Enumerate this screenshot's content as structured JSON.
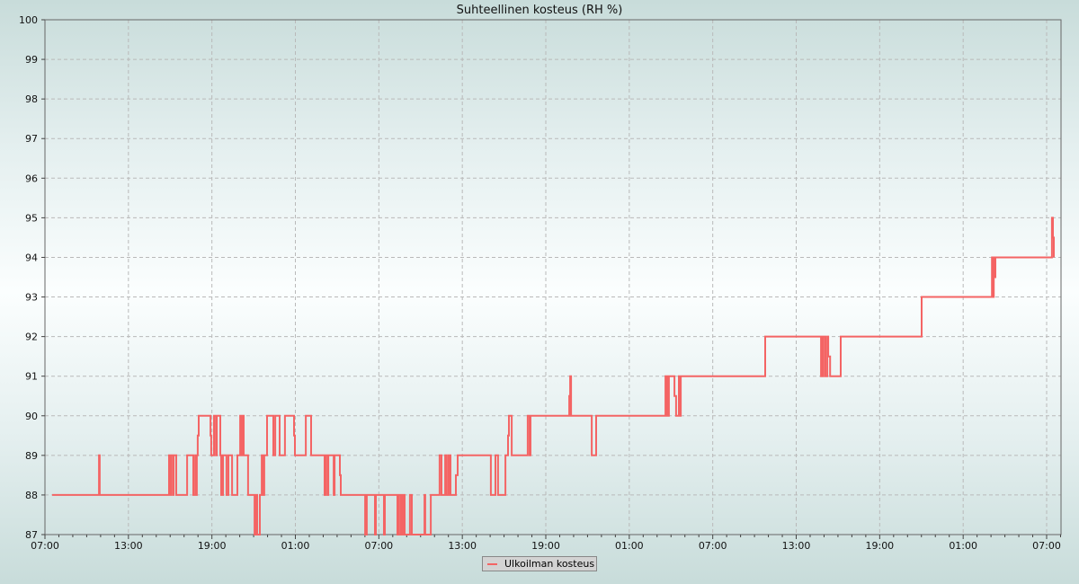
{
  "chart_data": {
    "type": "line",
    "step": true,
    "title": "Suhteellinen kosteus (RH %)",
    "xlabel": "",
    "ylabel": "",
    "ylim": [
      87,
      100
    ],
    "yticks": [
      87,
      88,
      89,
      90,
      91,
      92,
      93,
      94,
      95,
      96,
      97,
      98,
      99,
      100
    ],
    "xlim": [
      "07:00",
      "08:02"
    ],
    "xtick_labels": [
      "07:00",
      "13:00",
      "19:00",
      "01:00",
      "07:00",
      "13:00",
      "19:00",
      "01:00",
      "07:00",
      "13:00",
      "19:00",
      "01:00",
      "07:00"
    ],
    "grid": true,
    "legend_position": "bottom-center",
    "series": [
      {
        "name": "Ulkoilman kosteus",
        "color": "#f46464",
        "points": [
          [
            "07:31",
            88
          ],
          [
            "10:53",
            89
          ],
          [
            "10:56",
            88
          ],
          [
            "15:55",
            89
          ],
          [
            "15:59",
            88
          ],
          [
            "16:03",
            89
          ],
          [
            "16:11",
            88
          ],
          [
            "16:15",
            89
          ],
          [
            "16:26",
            88
          ],
          [
            "17:13",
            89
          ],
          [
            "17:40",
            88
          ],
          [
            "17:48",
            89
          ],
          [
            "17:51",
            88
          ],
          [
            "17:55",
            89
          ],
          [
            "17:59",
            89.5
          ],
          [
            "18:03",
            90
          ],
          [
            "18:54",
            89.5
          ],
          [
            "18:57",
            89
          ],
          [
            "19:09",
            90
          ],
          [
            "19:17",
            89
          ],
          [
            "19:21",
            90
          ],
          [
            "19:36",
            89
          ],
          [
            "19:40",
            88
          ],
          [
            "19:48",
            89
          ],
          [
            "20:03",
            88
          ],
          [
            "20:11",
            89
          ],
          [
            "20:27",
            88
          ],
          [
            "20:50",
            89
          ],
          [
            "21:02",
            90
          ],
          [
            "21:09",
            89
          ],
          [
            "21:13",
            90
          ],
          [
            "21:17",
            89
          ],
          [
            "21:36",
            88
          ],
          [
            "22:04",
            87
          ],
          [
            "22:11",
            88
          ],
          [
            "22:15",
            87
          ],
          [
            "22:27",
            88
          ],
          [
            "22:35",
            89
          ],
          [
            "22:42",
            88
          ],
          [
            "22:46",
            89
          ],
          [
            "22:58",
            90
          ],
          [
            "23:25",
            89
          ],
          [
            "23:33",
            90
          ],
          [
            "23:52",
            89
          ],
          [
            "00:15",
            90
          ],
          [
            "00:54",
            89.5
          ],
          [
            "00:58",
            89
          ],
          [
            "01:45",
            90
          ],
          [
            "02:08",
            89
          ],
          [
            "03:06",
            88
          ],
          [
            "03:10",
            89
          ],
          [
            "03:18",
            88
          ],
          [
            "03:22",
            89
          ],
          [
            "03:45",
            88
          ],
          [
            "03:49",
            89
          ],
          [
            "04:12",
            88.5
          ],
          [
            "04:16",
            88
          ],
          [
            "06:01",
            87
          ],
          [
            "06:08",
            88
          ],
          [
            "06:43",
            87
          ],
          [
            "06:47",
            88
          ],
          [
            "07:22",
            87
          ],
          [
            "07:26",
            88
          ],
          [
            "08:20",
            87
          ],
          [
            "08:24",
            88
          ],
          [
            "08:32",
            87
          ],
          [
            "08:36",
            88
          ],
          [
            "08:43",
            87
          ],
          [
            "08:47",
            88
          ],
          [
            "08:51",
            87
          ],
          [
            "09:14",
            88
          ],
          [
            "09:22",
            87
          ],
          [
            "10:17",
            88
          ],
          [
            "10:20",
            87
          ],
          [
            "10:44",
            88
          ],
          [
            "11:22",
            89
          ],
          [
            "11:30",
            88
          ],
          [
            "11:46",
            89
          ],
          [
            "11:53",
            88
          ],
          [
            "12:01",
            89
          ],
          [
            "12:09",
            88
          ],
          [
            "12:32",
            88.5
          ],
          [
            "12:40",
            89
          ],
          [
            "15:03",
            88
          ],
          [
            "15:23",
            89
          ],
          [
            "15:34",
            88
          ],
          [
            "16:06",
            89
          ],
          [
            "16:17",
            89.5
          ],
          [
            "16:21",
            90
          ],
          [
            "16:33",
            89
          ],
          [
            "17:42",
            90
          ],
          [
            "17:50",
            89
          ],
          [
            "17:54",
            90
          ],
          [
            "20:41",
            90.5
          ],
          [
            "20:45",
            91
          ],
          [
            "20:49",
            90
          ],
          [
            "22:18",
            89
          ],
          [
            "22:37",
            90
          ],
          [
            "03:36",
            91
          ],
          [
            "03:40",
            90
          ],
          [
            "03:44",
            91
          ],
          [
            "03:47",
            90
          ],
          [
            "03:51",
            91
          ],
          [
            "04:15",
            90.5
          ],
          [
            "04:22",
            90
          ],
          [
            "04:34",
            91
          ],
          [
            "04:38",
            90
          ],
          [
            "04:42",
            91
          ],
          [
            "10:46",
            92
          ],
          [
            "14:47",
            91
          ],
          [
            "14:51",
            92
          ],
          [
            "14:55",
            91
          ],
          [
            "14:58",
            92
          ],
          [
            "15:06",
            91
          ],
          [
            "15:14",
            92
          ],
          [
            "15:18",
            91.5
          ],
          [
            "15:26",
            91
          ],
          [
            "16:12",
            92
          ],
          [
            "22:01",
            93
          ],
          [
            "03:04",
            94
          ],
          [
            "03:08",
            93
          ],
          [
            "03:12",
            94
          ],
          [
            "03:15",
            93.5
          ],
          [
            "03:19",
            94
          ],
          [
            "07:23",
            95
          ],
          [
            "07:27",
            94.5
          ],
          [
            "07:31",
            94
          ]
        ]
      }
    ]
  }
}
